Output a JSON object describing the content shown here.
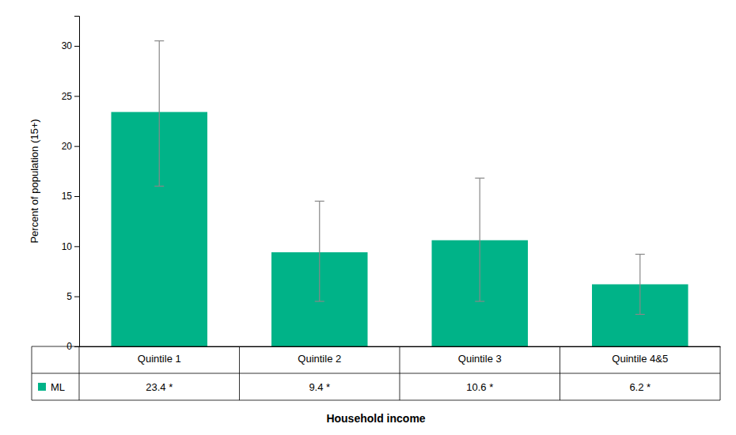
{
  "chart_data": {
    "type": "bar",
    "categories": [
      "Quintile 1",
      "Quintile 2",
      "Quintile 3",
      "Quintile 4&5"
    ],
    "series": [
      {
        "name": "ML",
        "color": "#00B388",
        "values": [
          23.4,
          9.4,
          10.6,
          6.2
        ],
        "value_labels": [
          "23.4 *",
          "9.4 *",
          "10.6 *",
          "6.2 *"
        ],
        "error_lower": [
          16.0,
          4.5,
          4.5,
          3.2
        ],
        "error_upper": [
          30.5,
          14.5,
          16.8,
          9.2
        ]
      }
    ],
    "ylabel": "Percent of population (15+)",
    "xlabel": "Household income",
    "ylim": [
      0,
      33
    ],
    "yticks": [
      0,
      5,
      10,
      15,
      20,
      25,
      30
    ],
    "grid": false
  }
}
